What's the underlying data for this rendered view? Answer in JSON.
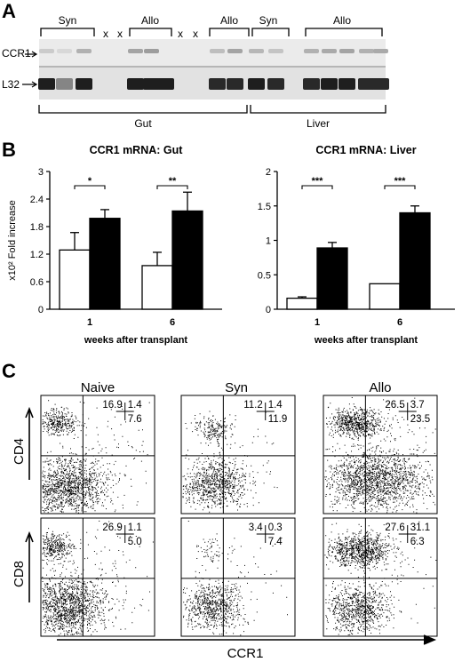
{
  "panels": {
    "a": "A",
    "b": "B",
    "c": "C"
  },
  "blot": {
    "lanes": [
      "Syn",
      "x",
      "x",
      "Allo",
      "x",
      "x",
      "Allo",
      "Syn",
      "Allo"
    ],
    "rows": [
      "CCR1",
      "L32"
    ],
    "tissues": [
      "Gut",
      "Liver"
    ]
  },
  "chart_data": [
    {
      "type": "bar",
      "title": "CCR1 mRNA: Gut",
      "ylabel": "x10² Fold increase",
      "xlabel": "weeks after transplant",
      "categories": [
        "1",
        "6"
      ],
      "ylim": [
        0,
        3
      ],
      "yticks": [
        "0",
        "0.6",
        "1.2",
        "1.8",
        "2.4",
        "3"
      ],
      "series": [
        {
          "values": [
            1.29,
            0.95
          ],
          "errors": [
            0.38,
            0.29
          ],
          "color": "#ffffff"
        },
        {
          "values": [
            1.98,
            2.14
          ],
          "errors": [
            0.19,
            0.41
          ],
          "color": "#000000"
        }
      ],
      "significance": [
        "*",
        "**"
      ]
    },
    {
      "type": "bar",
      "title": "CCR1 mRNA: Liver",
      "xlabel": "weeks after transplant",
      "categories": [
        "1",
        "6"
      ],
      "ylim": [
        0,
        2
      ],
      "yticks": [
        "0",
        "0.5",
        "1",
        "1.5",
        "2"
      ],
      "series": [
        {
          "values": [
            0.16,
            0.37
          ],
          "errors": [
            0.02,
            0.0
          ],
          "color": "#ffffff"
        },
        {
          "values": [
            0.89,
            1.4
          ],
          "errors": [
            0.08,
            0.1
          ],
          "color": "#000000"
        }
      ],
      "significance": [
        "***",
        "***"
      ]
    }
  ],
  "flow": {
    "columns": [
      "Naive",
      "Syn",
      "Allo"
    ],
    "rows": [
      "CD4",
      "CD8"
    ],
    "xaxis": "CCR1",
    "quadrants": [
      [
        [
          "16.9",
          "1.4",
          "7.6"
        ],
        [
          "11.2",
          "1.4",
          "11.9"
        ],
        [
          "26.5",
          "3.7",
          "23.5"
        ]
      ],
      [
        [
          "26.9",
          "1.1",
          "5.0"
        ],
        [
          "3.4",
          "0.3",
          "7.4"
        ],
        [
          "27.6",
          "31.1",
          "6.3"
        ]
      ]
    ]
  }
}
